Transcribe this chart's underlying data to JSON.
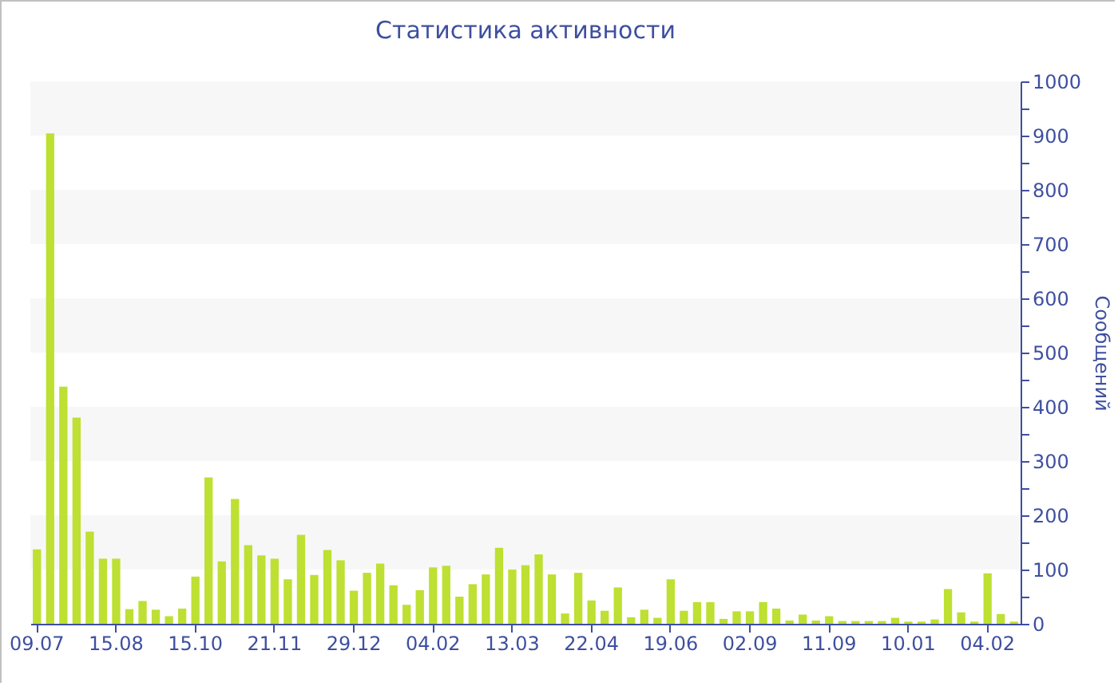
{
  "chart_data": {
    "type": "bar",
    "title": "Статистика активности",
    "ylabel": "Сообщений",
    "categories": [
      "09.07",
      null,
      null,
      null,
      null,
      null,
      "15.08",
      null,
      null,
      null,
      null,
      null,
      "15.10",
      null,
      null,
      null,
      null,
      null,
      "21.11",
      null,
      null,
      null,
      null,
      null,
      "29.12",
      null,
      null,
      null,
      null,
      null,
      "04.02",
      null,
      null,
      null,
      null,
      null,
      "13.03",
      null,
      null,
      null,
      null,
      null,
      "22.04",
      null,
      null,
      null,
      null,
      null,
      "19.06",
      null,
      null,
      null,
      null,
      null,
      "02.09",
      null,
      null,
      null,
      null,
      null,
      "11.09",
      null,
      null,
      null,
      null,
      null,
      "10.01",
      null,
      null,
      null,
      null,
      null,
      "04.02",
      null,
      null
    ],
    "values": [
      137,
      904,
      437,
      380,
      170,
      120,
      120,
      27,
      42,
      26,
      14,
      28,
      87,
      270,
      115,
      230,
      145,
      126,
      120,
      82,
      164,
      90,
      136,
      117,
      61,
      94,
      111,
      71,
      35,
      62,
      104,
      107,
      50,
      73,
      91,
      140,
      100,
      108,
      128,
      91,
      19,
      94,
      43,
      24,
      67,
      12,
      26,
      11,
      82,
      24,
      40,
      40,
      9,
      23,
      23,
      40,
      28,
      6,
      17,
      6,
      14,
      5,
      5,
      5,
      5,
      11,
      4,
      4,
      8,
      64,
      21,
      4,
      93,
      18,
      4
    ],
    "color": "#bde032",
    "ylim": [
      0,
      1000
    ],
    "yticks": [
      0,
      {
        "value": 50,
        "label": null
      },
      100,
      {
        "value": 150,
        "label": null
      },
      200,
      {
        "value": 250,
        "label": null
      },
      300,
      {
        "value": 350,
        "label": null
      },
      400,
      {
        "value": 450,
        "label": null
      },
      500,
      {
        "value": 550,
        "label": null
      },
      600,
      {
        "value": 650,
        "label": null
      },
      700,
      {
        "value": 750,
        "label": null
      },
      800,
      {
        "value": 850,
        "label": null
      },
      900,
      {
        "value": 950,
        "label": null
      },
      1000
    ],
    "bands": [
      {
        "axis": "y",
        "from": 100,
        "to": 200,
        "color": "#f7f7f7"
      },
      {
        "axis": "y",
        "from": 300,
        "to": 400,
        "color": "#f7f7f7"
      },
      {
        "axis": "y",
        "from": 500,
        "to": 600,
        "color": "#f7f7f7"
      },
      {
        "axis": "y",
        "from": 700,
        "to": 800,
        "color": "#f7f7f7"
      },
      {
        "axis": "y",
        "from": 900,
        "to": 1000,
        "color": "#f7f7f7"
      }
    ]
  }
}
